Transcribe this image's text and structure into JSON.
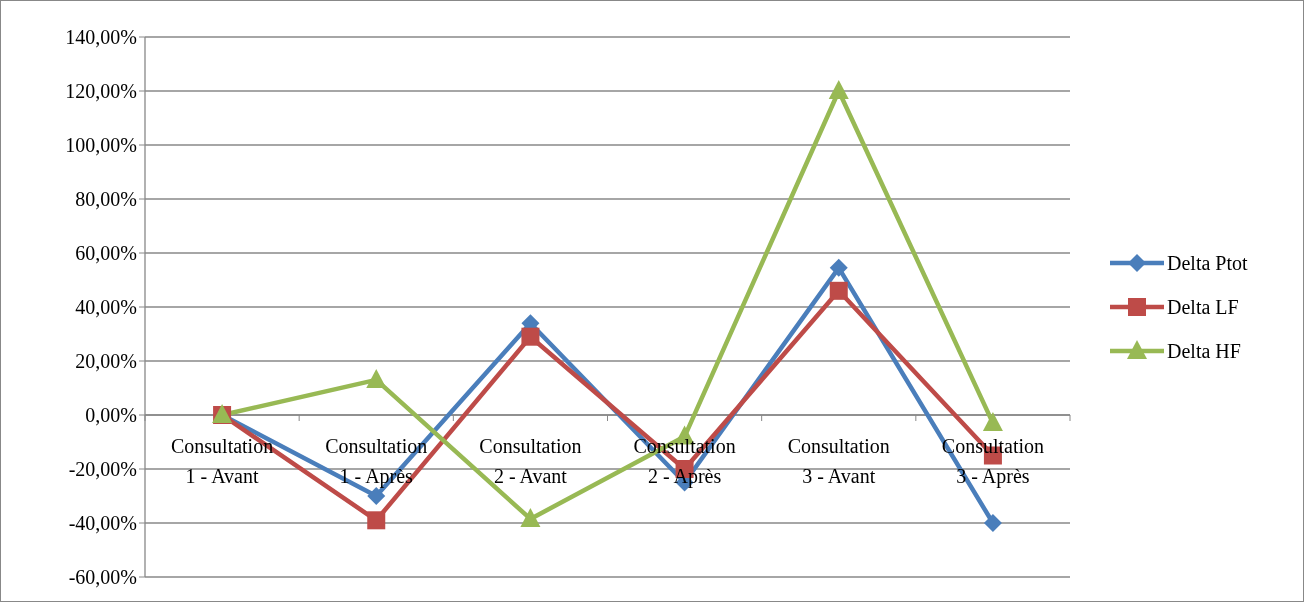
{
  "chart_data": {
    "type": "line",
    "categories": [
      "Consultation 1 - Avant",
      "Consultation 1 - Après",
      "Consultation 2 - Avant",
      "Consultation 2 - Après",
      "Consultation 3 - Avant",
      "Consultation 3 - Après"
    ],
    "series": [
      {
        "name": "Delta Ptot",
        "color": "#4a7ebb",
        "marker": "diamond",
        "values": [
          0,
          -30,
          34,
          -25,
          54.5,
          -40
        ]
      },
      {
        "name": "Delta LF",
        "color": "#be4b48",
        "marker": "square",
        "values": [
          0,
          -39,
          29,
          -20,
          46,
          -15
        ]
      },
      {
        "name": "Delta HF",
        "color": "#98b954",
        "marker": "triangle",
        "values": [
          0,
          13,
          -38.5,
          -8,
          120,
          -3
        ]
      }
    ],
    "ylim": [
      -60,
      140
    ],
    "yticks": [
      {
        "value": -60,
        "label": "-60,00%"
      },
      {
        "value": -40,
        "label": "-40,00%"
      },
      {
        "value": -20,
        "label": "-20,00%"
      },
      {
        "value": 0,
        "label": "0,00%"
      },
      {
        "value": 20,
        "label": "20,00%"
      },
      {
        "value": 40,
        "label": "40,00%"
      },
      {
        "value": 60,
        "label": "60,00%"
      },
      {
        "value": 80,
        "label": "80,00%"
      },
      {
        "value": 100,
        "label": "100,00%"
      },
      {
        "value": 120,
        "label": "120,00%"
      },
      {
        "value": 140,
        "label": "140,00%"
      }
    ],
    "grid": "y",
    "legend": "right"
  }
}
